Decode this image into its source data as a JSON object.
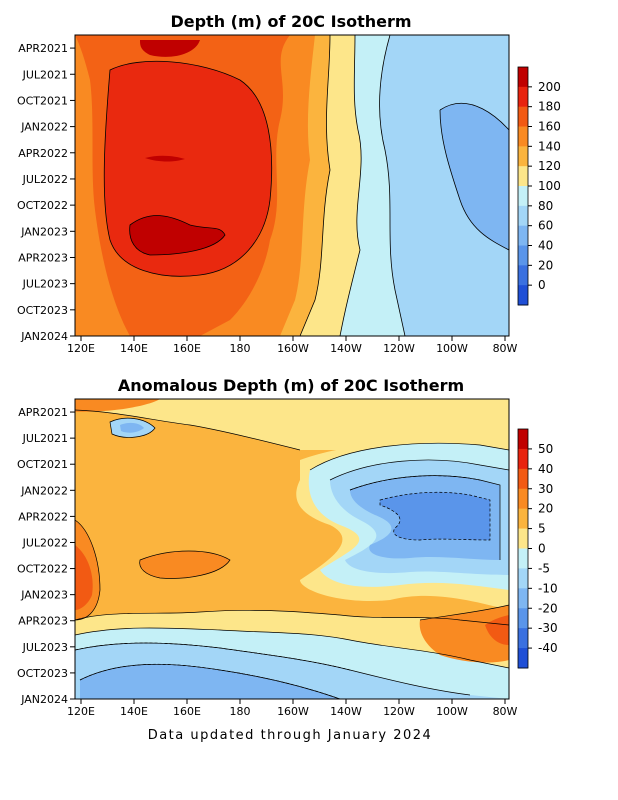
{
  "footer": "Data updated through January 2024",
  "chart_data": [
    {
      "type": "heatmap",
      "title": "Depth (m) of 20C Isotherm",
      "x_ticks": [
        "120E",
        "140E",
        "160E",
        "180",
        "160W",
        "140W",
        "120W",
        "100W",
        "80W"
      ],
      "y_ticks": [
        "APR2021",
        "JUL2021",
        "OCT2021",
        "JAN2022",
        "APR2022",
        "JUL2022",
        "OCT2022",
        "JAN2023",
        "APR2023",
        "JUL2023",
        "OCT2023",
        "JAN2024"
      ],
      "colorbar": {
        "labels": [
          "200",
          "180",
          "160",
          "140",
          "120",
          "100",
          "80",
          "60",
          "40",
          "20",
          "0"
        ],
        "colors": [
          "#c00000",
          "#e8230e",
          "#f25a13",
          "#f98a22",
          "#fbb43e",
          "#fde68a",
          "#c4f0f7",
          "#a3d6f7",
          "#7eb6f2",
          "#5a95ea",
          "#3a70e0",
          "#1f4fd6"
        ]
      },
      "levels": [
        0,
        20,
        40,
        60,
        80,
        100,
        120,
        140,
        160,
        180,
        200
      ],
      "x_range": [
        "120E",
        "80W"
      ],
      "y_range": [
        "JAN2024",
        "APR2021"
      ]
    },
    {
      "type": "heatmap",
      "title": "Anomalous Depth (m) of 20C Isotherm",
      "x_ticks": [
        "120E",
        "140E",
        "160E",
        "180",
        "160W",
        "140W",
        "120W",
        "100W",
        "80W"
      ],
      "y_ticks": [
        "APR2021",
        "JUL2021",
        "OCT2021",
        "JAN2022",
        "APR2022",
        "JUL2022",
        "OCT2022",
        "JAN2023",
        "APR2023",
        "JUL2023",
        "OCT2023",
        "JAN2024"
      ],
      "colorbar": {
        "labels": [
          "50",
          "40",
          "30",
          "20",
          "5",
          "0",
          "-5",
          "-10",
          "-20",
          "-30",
          "-40"
        ],
        "colors": [
          "#c00000",
          "#e8230e",
          "#f25a13",
          "#f98a22",
          "#fbb43e",
          "#fde68a",
          "#c4f0f7",
          "#a3d6f7",
          "#7eb6f2",
          "#5a95ea",
          "#3a70e0",
          "#1f4fd6"
        ]
      },
      "levels": [
        -40,
        -30,
        -20,
        -10,
        -5,
        0,
        5,
        20,
        30,
        40,
        50
      ],
      "x_range": [
        "120E",
        "80W"
      ],
      "y_range": [
        "JAN2024",
        "APR2021"
      ]
    }
  ]
}
